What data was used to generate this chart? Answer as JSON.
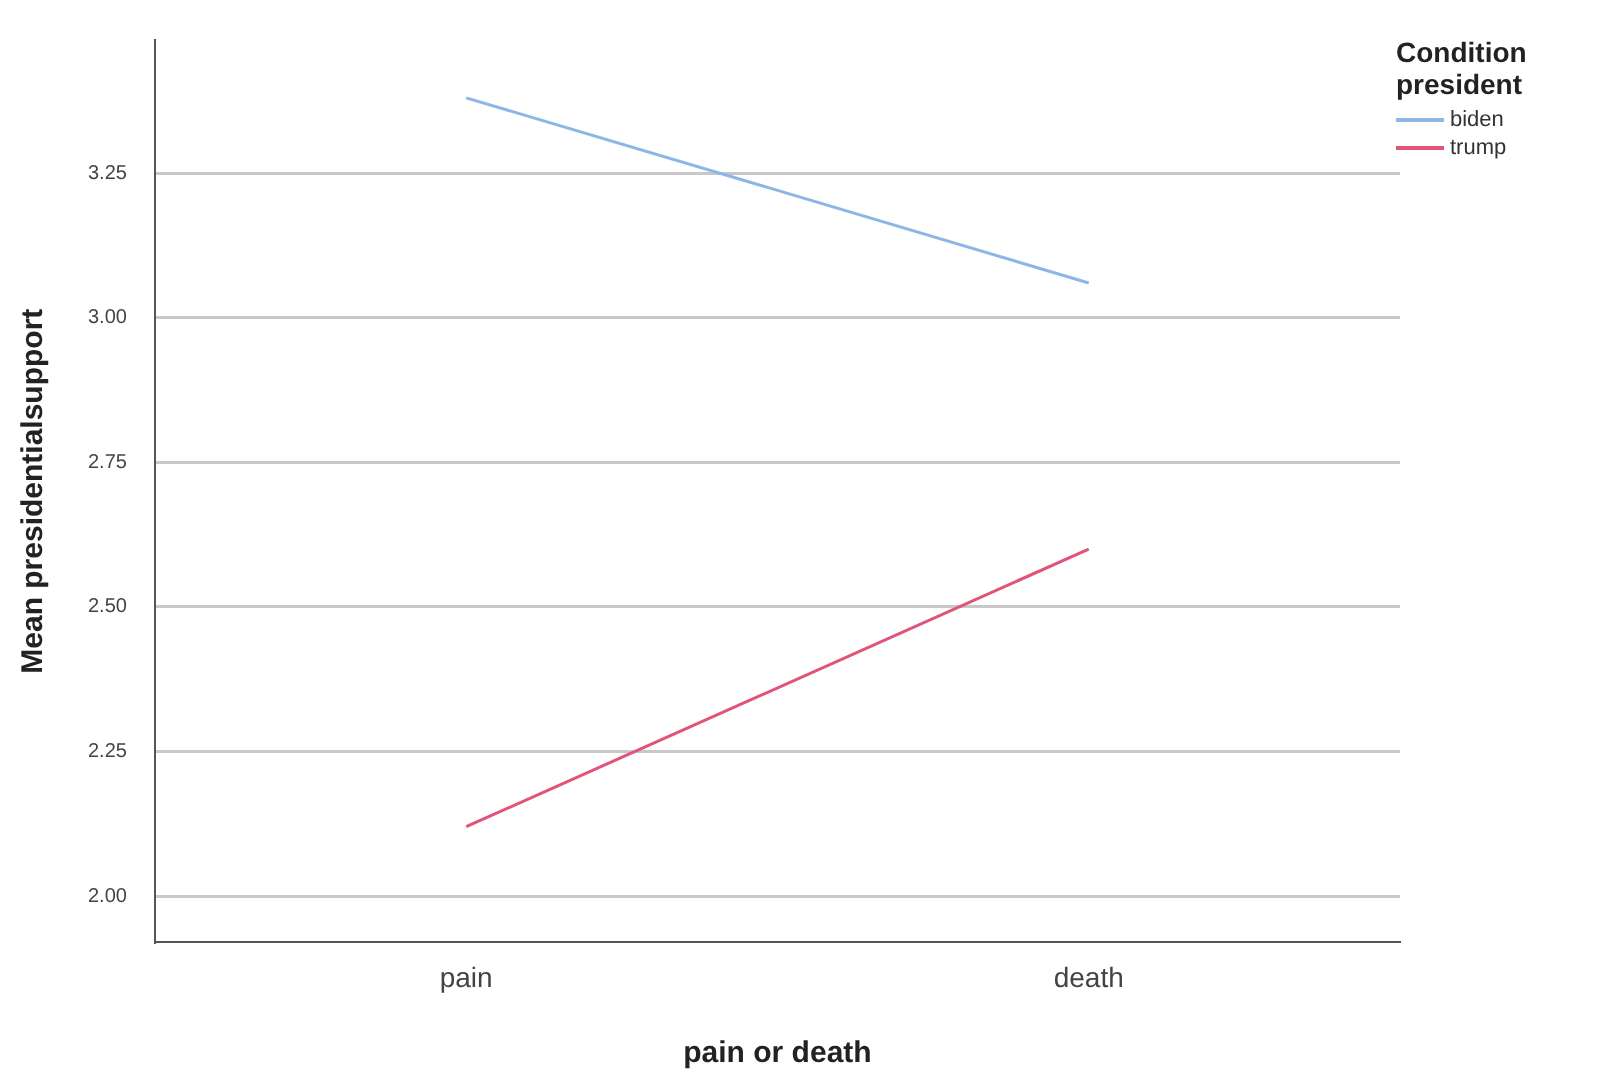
{
  "chart_data": {
    "type": "line",
    "xlabel": "pain or death",
    "ylabel": "Mean presidentialsupport",
    "legend_title": "Condition president",
    "categories": [
      "pain",
      "death"
    ],
    "series": [
      {
        "name": "biden",
        "color": "#8db6e6",
        "values": [
          3.38,
          3.06
        ]
      },
      {
        "name": "trump",
        "color": "#e05478",
        "values": [
          2.12,
          2.6
        ]
      }
    ],
    "ylim": [
      1.92,
      3.48
    ],
    "yticks": [
      {
        "value": 2,
        "label": "2.00"
      },
      {
        "value": 2.25,
        "label": "2.25"
      },
      {
        "value": 2.5,
        "label": "2.50"
      },
      {
        "value": 2.75,
        "label": "2.75"
      },
      {
        "value": 3,
        "label": "3.00"
      },
      {
        "value": 3.25,
        "label": "3.25"
      }
    ],
    "grid": "y",
    "legend": "top right",
    "marker": "none",
    "line_style": "solid"
  }
}
